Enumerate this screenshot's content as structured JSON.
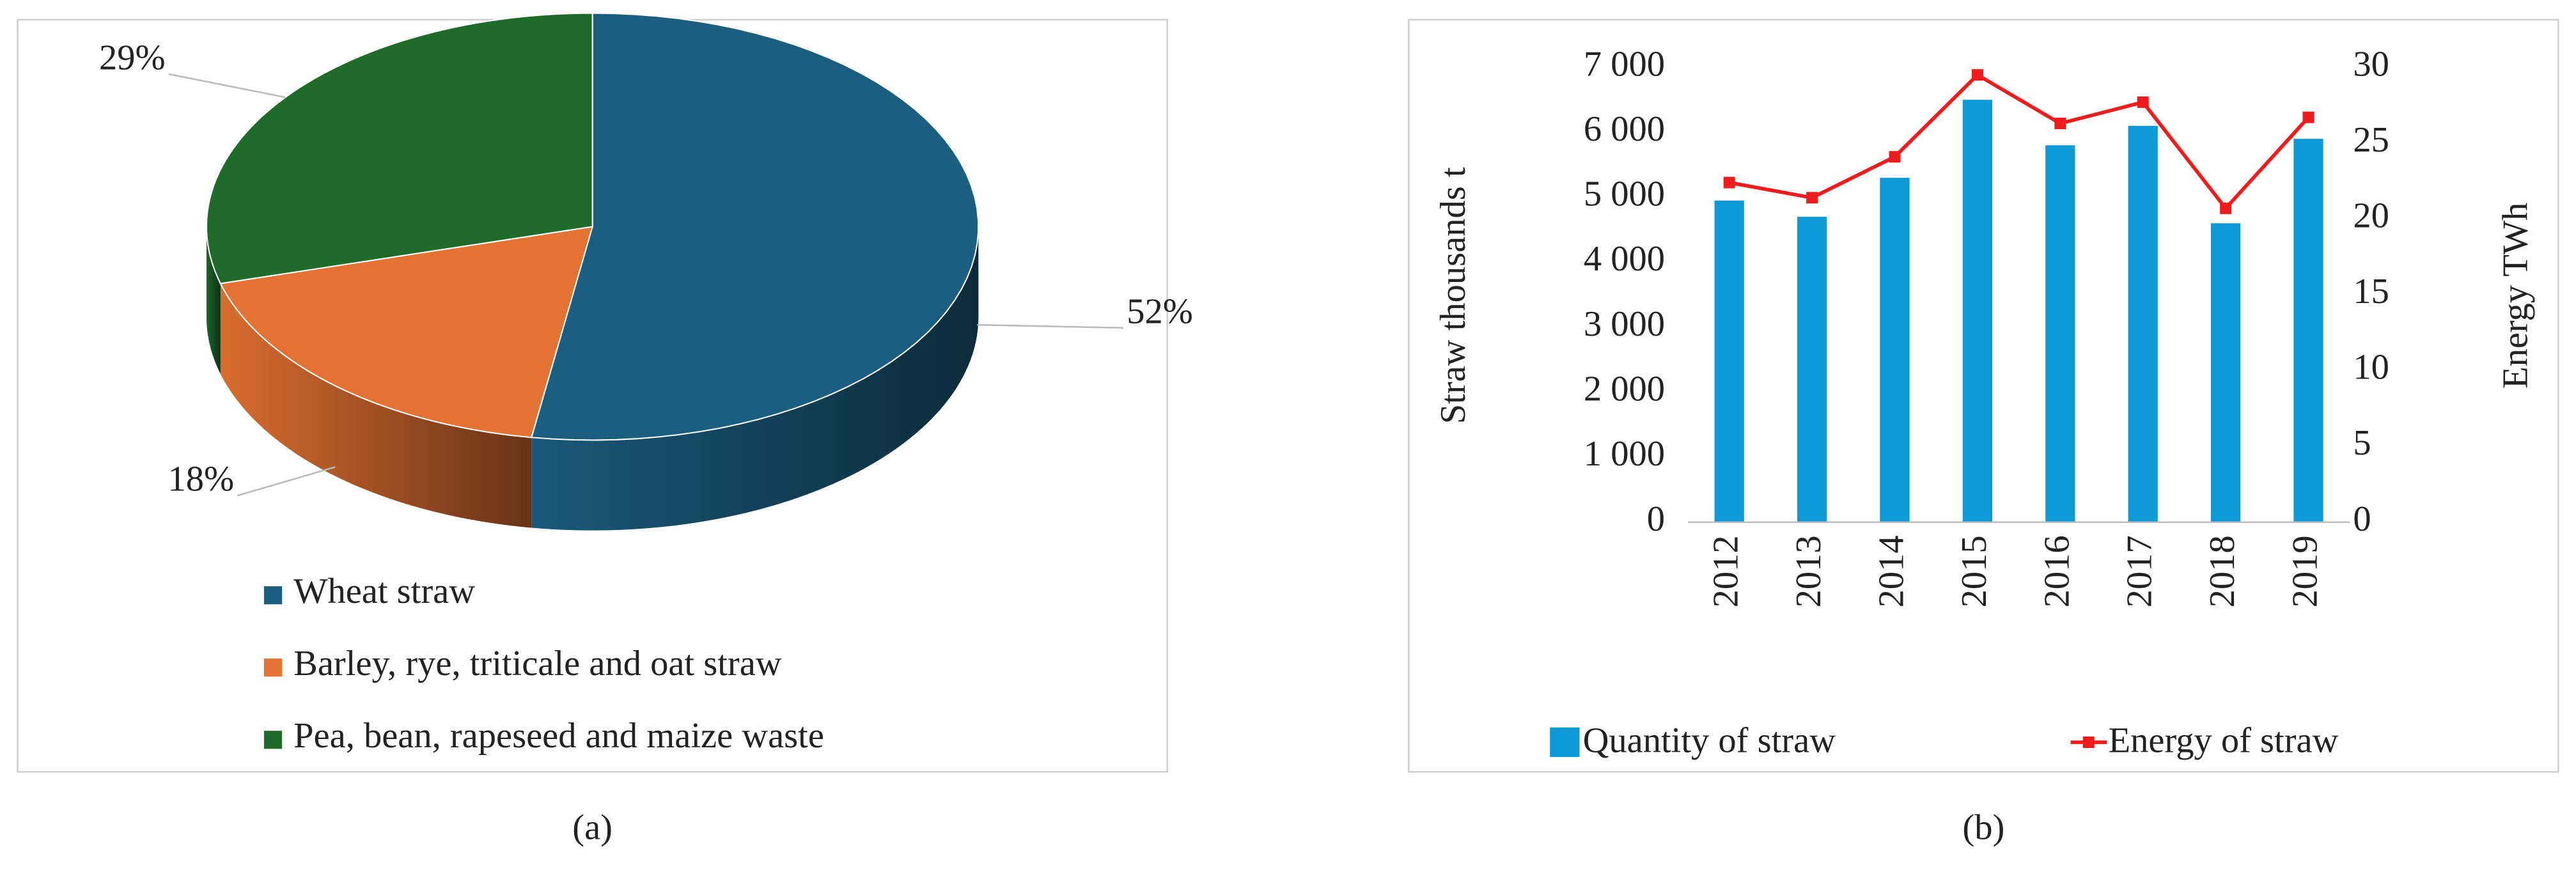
{
  "chart_data": [
    {
      "type": "pie3d",
      "caption": "(a)",
      "categories": [
        "Wheat straw",
        "Barley, rye, triticale and oat straw",
        "Pea, bean, rapeseed and maize waste"
      ],
      "values": [
        52,
        18,
        29
      ],
      "value_labels": [
        "52%",
        "18%",
        "29%"
      ],
      "colors": [
        "#1b5e80",
        "#e47232",
        "#1f6b2a"
      ]
    },
    {
      "type": "bar-line",
      "caption": "(b)",
      "categories": [
        "2012",
        "2013",
        "2014",
        "2015",
        "2016",
        "2017",
        "2018",
        "2019"
      ],
      "y_label": "Straw thousands t",
      "y2_label": "Energy TWh",
      "ylim": [
        0,
        7000
      ],
      "yticks": [
        0,
        {
          "value": 1000,
          "label": "1 000"
        },
        {
          "value": 2000,
          "label": "2 000"
        },
        {
          "value": 3000,
          "label": "3 000"
        },
        {
          "value": 4000,
          "label": "4 000"
        },
        {
          "value": 5000,
          "label": "5 000"
        },
        {
          "value": 6000,
          "label": "6 000"
        },
        {
          "value": 7000,
          "label": "7 000"
        }
      ],
      "y2lim": [
        0,
        30
      ],
      "y2ticks": [
        0,
        5,
        10,
        15,
        20,
        25,
        30
      ],
      "series": [
        {
          "name": "Quantity of straw",
          "type": "bar",
          "color": "#0e9ad7",
          "values": [
            4950,
            4700,
            5300,
            6500,
            5800,
            6100,
            4600,
            5900
          ]
        },
        {
          "name": "Energy of straw",
          "type": "line",
          "axis": "y2",
          "color": "#ee1c1c",
          "values": [
            22.4,
            21.4,
            24.1,
            29.5,
            26.3,
            27.7,
            20.7,
            26.7
          ]
        }
      ]
    }
  ]
}
